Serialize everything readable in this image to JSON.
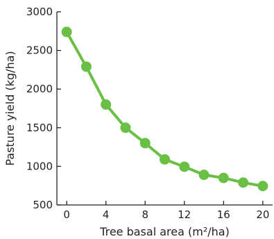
{
  "chart_data": {
    "type": "line",
    "title": "",
    "xlabel": "Tree basal area (m²/ha)",
    "ylabel": "Pasture yield (kg/ha)",
    "xlim": [
      -1,
      21
    ],
    "ylim": [
      500,
      3000
    ],
    "xticks": [
      0,
      4,
      8,
      12,
      16,
      20
    ],
    "yticks": [
      500,
      1000,
      1500,
      2000,
      2500,
      3000
    ],
    "grid": false,
    "legend": "none",
    "series": [
      {
        "color": "#6abf45",
        "x": [
          0,
          2,
          4,
          6,
          8,
          10,
          12,
          14,
          16,
          18,
          20
        ],
        "y": [
          2740,
          2290,
          1800,
          1500,
          1300,
          1090,
          995,
          890,
          850,
          790,
          745
        ]
      }
    ]
  }
}
